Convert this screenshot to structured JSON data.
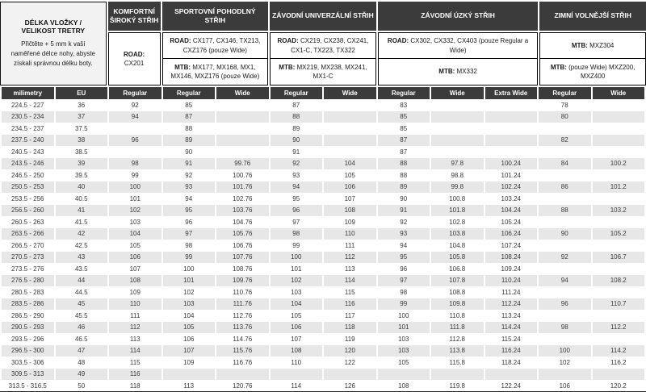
{
  "info": {
    "title": "DÉLKA VLOŽKY / VELIKOST TRETRY",
    "note": "Přičtěte + 5 mm k vaší naměřené délce nohy, abyste získali správnou délku boty."
  },
  "groups": [
    {
      "title": "KOMFORTNÍ ŠIROKÝ STŘIH"
    },
    {
      "title": "SPORTOVNÍ POHODLNÝ STŘIH"
    },
    {
      "title": "ZÁVODNÍ UNIVERZÁLNÍ STŘIH"
    },
    {
      "title": "ZÁVODNÍ ÚZKÝ STŘIH"
    },
    {
      "title": "ZIMNÍ VOLNĚJŠÍ STŘIH"
    }
  ],
  "models": {
    "komfort_road": {
      "prefix": "ROAD:",
      "list": " CX201"
    },
    "sport_road": {
      "prefix": "ROAD:",
      "list": " CX177, CX146, TX213, CXZ176 (pouze Wide)"
    },
    "sport_mtb": {
      "prefix": "MTB:",
      "list": " MX177, MX168, MX1, MX146, MXZ176 (pouze Wide)"
    },
    "univ_road": {
      "prefix": "ROAD:",
      "list": " CX219, CX238, CX241, CX1-C, TX223, TX322"
    },
    "univ_mtb": {
      "prefix": "MTB:",
      "list": " MX219, MX238, MX241, MX1-C"
    },
    "uzky_road": {
      "prefix": "ROAD:",
      "list": " CX302, CX332, CX403 (pouze Regular a Wide)"
    },
    "uzky_mtb": {
      "prefix": "MTB:",
      "list": " MX332"
    },
    "zimni_top": {
      "prefix": "MTB:",
      "list": " MXZ304"
    },
    "zimni_bottom": {
      "prefix": "MTB:",
      "list": " (pouze Wide) MXZ200, MXZ400"
    }
  },
  "colors": {
    "header_bg": "#3b3b3b",
    "header_text": "#ffffff",
    "stripe": "#e7e7e7",
    "info_bg": "#f2f2f2",
    "body_text": "#3a3a3a"
  },
  "chart_data": {
    "type": "table",
    "title": "Velikostní tabulka tretry (délka vložky / velikost)",
    "columns": [
      "milimetry",
      "EU",
      "Regular",
      "Regular",
      "Wide",
      "Regular",
      "Wide",
      "Regular",
      "Wide",
      "Extra Wide",
      "Regular",
      "Wide"
    ],
    "column_groups": [
      "",
      "",
      "KOMFORTNÍ ŠIROKÝ STŘIH",
      "SPORTOVNÍ POHODLNÝ STŘIH",
      "SPORTOVNÍ POHODLNÝ STŘIH",
      "ZÁVODNÍ UNIVERZÁLNÍ STŘIH",
      "ZÁVODNÍ UNIVERZÁLNÍ STŘIH",
      "ZÁVODNÍ ÚZKÝ STŘIH",
      "ZÁVODNÍ ÚZKÝ STŘIH",
      "ZÁVODNÍ ÚZKÝ STŘIH",
      "ZIMNÍ VOLNĚJŠÍ STŘIH",
      "ZIMNÍ VOLNĚJŠÍ STŘIH"
    ],
    "rows": [
      [
        "224.5 - 227",
        "36",
        "92",
        "85",
        "",
        "87",
        "",
        "83",
        "",
        "",
        "78",
        ""
      ],
      [
        "230.5 - 234",
        "37",
        "94",
        "87",
        "",
        "88",
        "",
        "85",
        "",
        "",
        "80",
        ""
      ],
      [
        "234.5 - 237",
        "37.5",
        "",
        "88",
        "",
        "89",
        "",
        "85",
        "",
        "",
        "",
        ""
      ],
      [
        "237.5 - 240",
        "38",
        "96",
        "89",
        "",
        "90",
        "",
        "87",
        "",
        "",
        "82",
        ""
      ],
      [
        "240.5 - 243",
        "38.5",
        "",
        "90",
        "",
        "91",
        "",
        "87",
        "",
        "",
        "",
        ""
      ],
      [
        "243.5 - 246",
        "39",
        "98",
        "91",
        "99.76",
        "92",
        "104",
        "88",
        "97.8",
        "100.24",
        "84",
        "100.2"
      ],
      [
        "246.5 - 250",
        "39.5",
        "99",
        "92",
        "100.76",
        "93",
        "105",
        "88",
        "98.8",
        "101.24",
        "",
        ""
      ],
      [
        "250.5 - 253",
        "40",
        "100",
        "93",
        "101.76",
        "94",
        "106",
        "89",
        "99.8",
        "102.24",
        "86",
        "101.2"
      ],
      [
        "253.5 - 256",
        "40.5",
        "101",
        "94",
        "102.76",
        "95",
        "107",
        "90",
        "100.8",
        "103.24",
        "",
        ""
      ],
      [
        "256.5 - 260",
        "41",
        "102",
        "95",
        "103.76",
        "96",
        "108",
        "91",
        "101.8",
        "104.24",
        "88",
        "103.2"
      ],
      [
        "260.5 - 263",
        "41.5",
        "103",
        "96",
        "104.76",
        "97",
        "109",
        "92",
        "102.8",
        "105.24",
        "",
        ""
      ],
      [
        "263.5 - 266",
        "42",
        "104",
        "97",
        "105.76",
        "98",
        "110",
        "93",
        "103.8",
        "106.24",
        "90",
        "105.2"
      ],
      [
        "266.5 - 270",
        "42.5",
        "105",
        "98",
        "106.76",
        "99",
        "111",
        "94",
        "104.8",
        "107.24",
        "",
        ""
      ],
      [
        "270.5 - 273",
        "43",
        "106",
        "99",
        "107.76",
        "100",
        "112",
        "95",
        "105.8",
        "108.24",
        "92",
        "106.7"
      ],
      [
        "273.5 - 276",
        "43.5",
        "107",
        "100",
        "108.76",
        "101",
        "113",
        "96",
        "106.8",
        "109.24",
        "",
        ""
      ],
      [
        "276.5 - 280",
        "44",
        "108",
        "101",
        "109.76",
        "102",
        "114",
        "97",
        "107.8",
        "110.24",
        "94",
        "108.2"
      ],
      [
        "280.5 - 283",
        "44.5",
        "109",
        "102",
        "110.76",
        "103",
        "115",
        "98",
        "108.8",
        "111.24",
        "",
        ""
      ],
      [
        "283.5 - 286",
        "45",
        "110",
        "103",
        "111.76",
        "104",
        "116",
        "99",
        "109.8",
        "112.24",
        "96",
        "110.7"
      ],
      [
        "286.5 - 290",
        "45.5",
        "111",
        "104",
        "112.76",
        "105",
        "117",
        "100",
        "110.8",
        "113.24",
        "",
        ""
      ],
      [
        "290.5 - 293",
        "46",
        "112",
        "105",
        "113.76",
        "106",
        "118",
        "101",
        "111.8",
        "114.24",
        "98",
        "112.2"
      ],
      [
        "293.5 - 296",
        "46.5",
        "113",
        "106",
        "114.76",
        "107",
        "119",
        "103",
        "112.8",
        "115.24",
        "",
        ""
      ],
      [
        "296.5 - 300",
        "47",
        "114",
        "107",
        "115.76",
        "108",
        "120",
        "103",
        "113.8",
        "116.24",
        "100",
        "114.2"
      ],
      [
        "303.5 - 306",
        "48",
        "115",
        "109",
        "116.76",
        "110",
        "122",
        "105",
        "115.8",
        "118.24",
        "102",
        "116.2"
      ],
      [
        "309.5 - 313",
        "49",
        "116",
        "",
        "",
        "",
        "",
        "",
        "",
        "",
        "",
        ""
      ],
      [
        "313.5 - 316.5",
        "50",
        "118",
        "113",
        "120.76",
        "114",
        "126",
        "108",
        "119.8",
        "122.24",
        "106",
        "120.2"
      ]
    ]
  }
}
